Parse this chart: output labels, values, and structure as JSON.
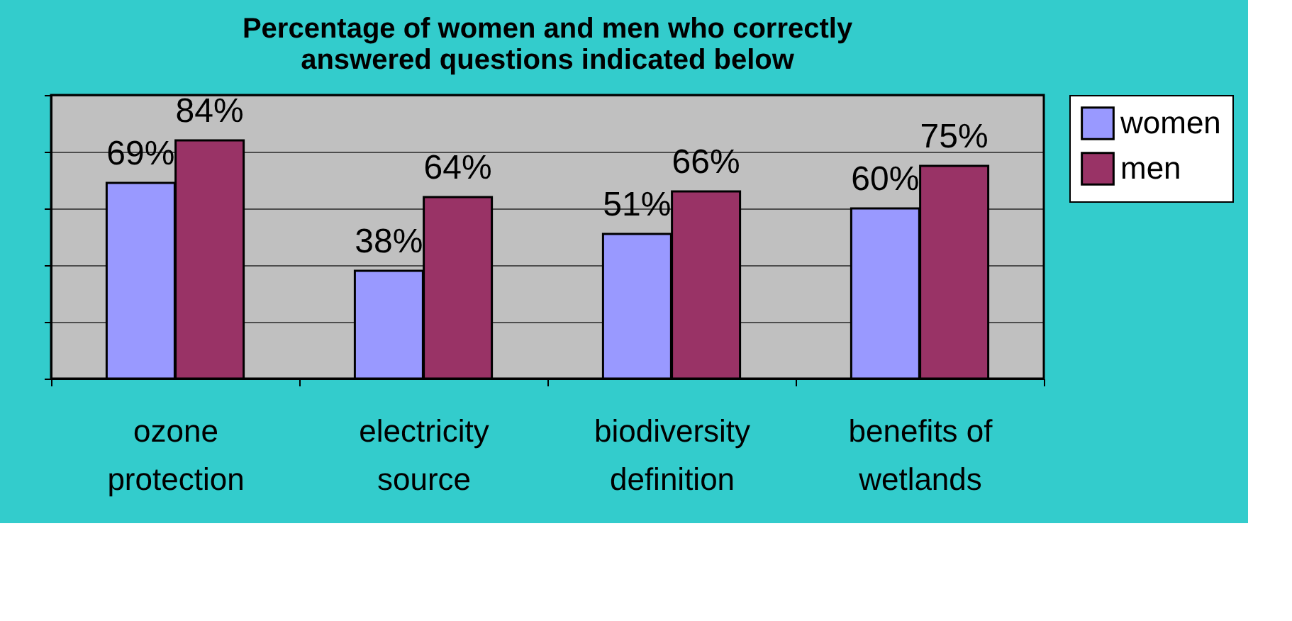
{
  "chart_data": {
    "type": "bar",
    "title": "Percentage of women and men who correctly\nanswered questions indicated below",
    "categories": [
      "ozone\nprotection",
      "electricity\nsource",
      "biodiversity\ndefinition",
      "benefits of\nwetlands"
    ],
    "series": [
      {
        "name": "women",
        "color": "#9999ff",
        "values": [
          69,
          38,
          51,
          60
        ],
        "value_labels": [
          "69%",
          "38%",
          "51%",
          "60%"
        ]
      },
      {
        "name": "men",
        "color": "#993366",
        "values": [
          84,
          64,
          66,
          75
        ],
        "value_labels": [
          "84%",
          "64%",
          "66%",
          "75%"
        ]
      }
    ],
    "ylim": [
      0,
      100
    ],
    "yticks": [
      {
        "value": 0,
        "label": null
      },
      {
        "value": 20,
        "label": null
      },
      {
        "value": 40,
        "label": null
      },
      {
        "value": 60,
        "label": null
      },
      {
        "value": 80,
        "label": null
      },
      {
        "value": 100,
        "label": null
      }
    ],
    "tick_labels": "x",
    "grid": "y",
    "legend": "right"
  }
}
